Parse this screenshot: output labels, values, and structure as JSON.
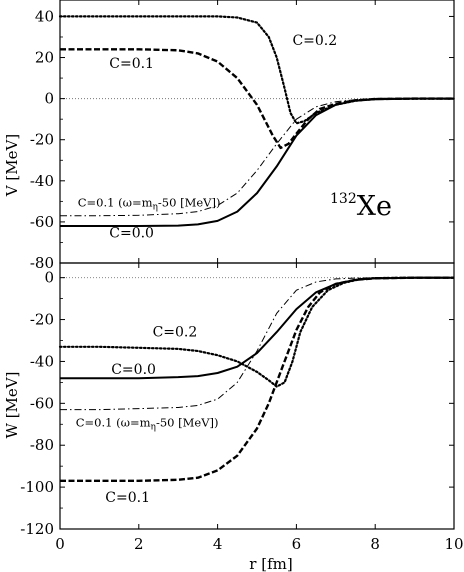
{
  "chart_data": [
    {
      "type": "line",
      "panel": "top",
      "xlabel": "",
      "ylabel": "V [MeV]",
      "xlim": [
        0,
        10
      ],
      "ylim": [
        -80,
        48
      ],
      "yticks": [
        40,
        20,
        0,
        -20,
        -40,
        -60,
        -80
      ],
      "ytick_labels": [
        "40",
        "20",
        "0",
        "-20",
        "-40",
        "-60",
        "-80"
      ],
      "nucleus_label": {
        "mass": "132",
        "symbol": "Xe"
      },
      "grid": false,
      "reference_line": 0,
      "series": [
        {
          "name": "C=0.0",
          "style": "solid",
          "x": [
            0,
            1,
            2,
            3,
            3.5,
            4,
            4.5,
            5,
            5.5,
            6,
            6.5,
            7,
            7.5,
            8,
            9,
            10
          ],
          "y": [
            -62,
            -62,
            -62,
            -61.8,
            -61.2,
            -59.5,
            -55,
            -46,
            -33,
            -18,
            -8,
            -3,
            -1,
            -0.3,
            0,
            0
          ]
        },
        {
          "name": "C=0.1",
          "style": "dashed",
          "x": [
            0,
            1,
            2,
            3,
            3.5,
            4,
            4.5,
            5,
            5.4,
            5.6,
            5.8,
            6,
            6.3,
            6.6,
            7,
            7.5,
            8,
            9,
            10
          ],
          "y": [
            24,
            24,
            24,
            23.5,
            22,
            18,
            10,
            -3,
            -18,
            -24,
            -22,
            -17,
            -10,
            -5,
            -2.5,
            -0.8,
            -0.2,
            0,
            0
          ]
        },
        {
          "name": "C=0.2",
          "style": "dotted",
          "x": [
            0,
            1,
            2,
            3,
            4,
            4.5,
            5,
            5.3,
            5.5,
            5.7,
            5.85,
            6,
            6.2,
            6.5,
            7,
            7.5,
            8,
            9,
            10
          ],
          "y": [
            40,
            40,
            40,
            40,
            40,
            39.5,
            37,
            30,
            20,
            5,
            -7,
            -12,
            -11,
            -7,
            -3,
            -1,
            -0.2,
            0,
            0
          ]
        },
        {
          "name": "C=0.1 (ω=mη-50 [MeV])",
          "style": "dashdot",
          "x": [
            0,
            1,
            2,
            3,
            3.5,
            4,
            4.5,
            5,
            5.5,
            6,
            6.5,
            7,
            7.5,
            8,
            9,
            10
          ],
          "y": [
            -57,
            -57,
            -56.8,
            -56,
            -55,
            -52,
            -46,
            -35,
            -22,
            -10,
            -4,
            -1.5,
            -0.5,
            -0.1,
            0,
            0
          ]
        }
      ],
      "annotations": [
        {
          "text": "C=0.2",
          "x": 5.9,
          "y": 26
        },
        {
          "text": "C=0.1",
          "x": 1.25,
          "y": 15
        },
        {
          "text": "C=0.1 (ω=m",
          "sub": "η",
          "tail": "-50 [MeV])",
          "x": 0.45,
          "y": -52.5
        },
        {
          "text": "C=0.0",
          "x": 1.25,
          "y": -67.5
        }
      ]
    },
    {
      "type": "line",
      "panel": "bottom",
      "xlabel": "r [fm]",
      "ylabel": "W [MeV]",
      "xlim": [
        0,
        10
      ],
      "ylim": [
        -120,
        7
      ],
      "xticks": [
        0,
        2,
        4,
        6,
        8,
        10
      ],
      "xtick_labels": [
        "0",
        "2",
        "4",
        "6",
        "8",
        "10"
      ],
      "yticks": [
        0,
        -20,
        -40,
        -60,
        -80,
        -100,
        -120
      ],
      "ytick_labels": [
        "0",
        "-20",
        "-40",
        "-60",
        "-80",
        "-100",
        "-120"
      ],
      "grid": false,
      "reference_line": 0,
      "series": [
        {
          "name": "C=0.0",
          "style": "solid",
          "x": [
            0,
            1,
            2,
            3,
            3.5,
            4,
            4.5,
            5,
            5.5,
            6,
            6.5,
            7,
            7.5,
            8,
            9,
            10
          ],
          "y": [
            -48,
            -48,
            -48,
            -47.5,
            -47,
            -45.5,
            -42.5,
            -36,
            -26,
            -15,
            -7,
            -3,
            -1,
            -0.3,
            0,
            0
          ]
        },
        {
          "name": "C=0.1",
          "style": "dashed",
          "x": [
            0,
            1,
            2,
            3,
            3.5,
            4,
            4.5,
            5,
            5.3,
            5.6,
            6,
            6.3,
            6.6,
            7,
            7.5,
            8,
            9,
            10
          ],
          "y": [
            -97,
            -97,
            -97,
            -96.5,
            -95.5,
            -92,
            -85,
            -72,
            -60,
            -45,
            -25,
            -14,
            -7,
            -3,
            -1,
            -0.3,
            0,
            0
          ]
        },
        {
          "name": "C=0.2",
          "style": "dotted",
          "x": [
            0,
            1,
            2,
            3,
            3.5,
            4,
            4.5,
            5,
            5.3,
            5.5,
            5.7,
            5.9,
            6.1,
            6.4,
            6.8,
            7.2,
            7.6,
            8,
            9,
            10
          ],
          "y": [
            -33,
            -33,
            -33.5,
            -34,
            -35,
            -37,
            -40,
            -45,
            -49,
            -52,
            -50,
            -40,
            -26,
            -14,
            -6,
            -2.5,
            -0.8,
            -0.2,
            0,
            0
          ]
        },
        {
          "name": "C=0.1 (ω=mη-50 [MeV])",
          "style": "dashdot",
          "x": [
            0,
            1,
            2,
            3,
            3.5,
            4,
            4.5,
            5,
            5.5,
            6,
            6.5,
            7,
            7.5,
            8,
            9,
            10
          ],
          "y": [
            -63,
            -63,
            -62.5,
            -62,
            -61,
            -58,
            -50,
            -35,
            -17,
            -6,
            -2,
            -0.6,
            -0.2,
            0,
            0,
            0
          ]
        }
      ],
      "annotations": [
        {
          "text": "C=0.2",
          "x": 2.35,
          "y": -28
        },
        {
          "text": "C=0.0",
          "x": 1.3,
          "y": -46
        },
        {
          "text": "C=0.1 (ω=m",
          "sub": "η",
          "tail": "-50 [MeV])",
          "x": 0.4,
          "y": -71
        },
        {
          "text": "C=0.1",
          "x": 1.15,
          "y": -107
        }
      ]
    }
  ]
}
